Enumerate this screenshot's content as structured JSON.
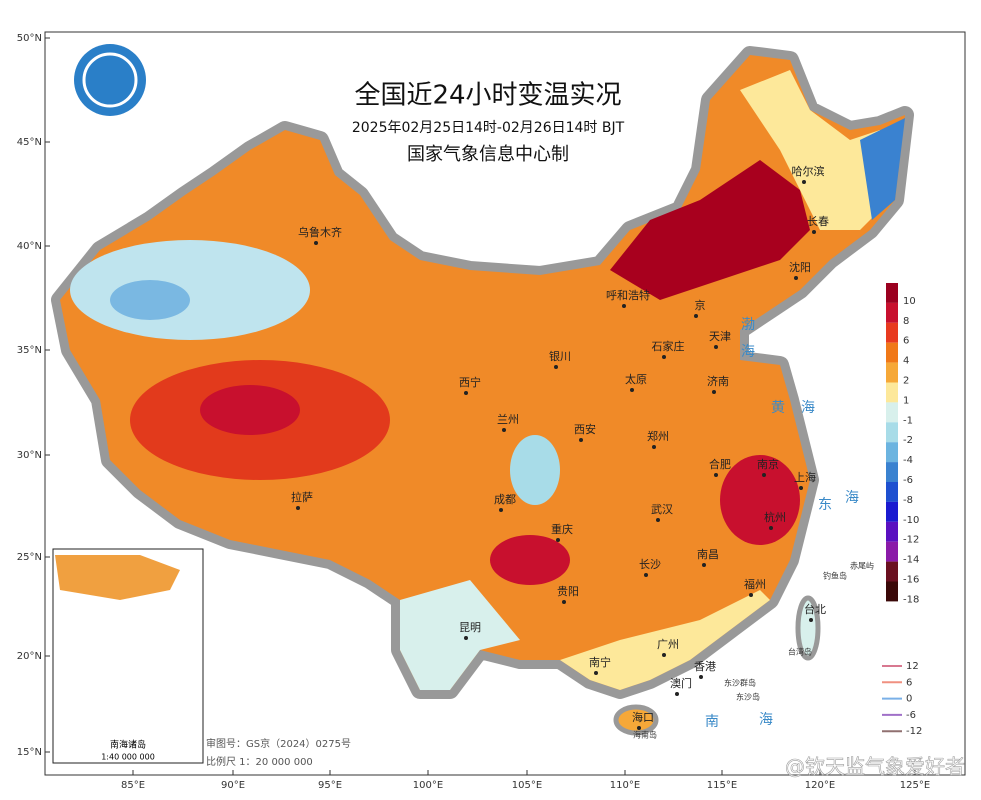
{
  "title": "全国近24小时变温实况",
  "subtitle": "2025年02月25日14时-02月26日14时 BJT",
  "producer": "国家气象信息中心制",
  "lat_labels": [
    "50°N",
    "45°N",
    "40°N",
    "35°N",
    "30°N",
    "25°N",
    "20°N",
    "15°N"
  ],
  "lon_labels": [
    "85°E",
    "90°E",
    "95°E",
    "100°E",
    "105°E",
    "110°E",
    "115°E",
    "120°E",
    "125°E"
  ],
  "cities": [
    "乌鲁木齐",
    "呼和浩特",
    "哈尔滨",
    "长春",
    "沈阳",
    "京",
    "天津",
    "石家庄",
    "银川",
    "太原",
    "济南",
    "西宁",
    "兰州",
    "西安",
    "郑州",
    "合肥",
    "南京",
    "上海",
    "拉萨",
    "成都",
    "武汉",
    "杭州",
    "重庆",
    "南昌",
    "长沙",
    "贵阳",
    "福州",
    "台北",
    "昆明",
    "广州",
    "南宁",
    "香港",
    "澳门",
    "海口"
  ],
  "places": [
    "钓鱼岛",
    "赤尾屿",
    "台湾岛",
    "东沙群岛",
    "东沙岛",
    "海南岛"
  ],
  "seas": [
    "渤",
    "海",
    "黄",
    "海",
    "东",
    "海",
    "南",
    "海"
  ],
  "colorbar": [
    {
      "value": 10,
      "color": "#9b0020"
    },
    {
      "value": 8,
      "color": "#c8102e"
    },
    {
      "value": 6,
      "color": "#e83a1f"
    },
    {
      "value": 4,
      "color": "#f07818"
    },
    {
      "value": 2,
      "color": "#f6a838"
    },
    {
      "value": 1,
      "color": "#fde89a"
    },
    {
      "value": -1,
      "color": "#d8f0ec"
    },
    {
      "value": -2,
      "color": "#a8dce8"
    },
    {
      "value": -4,
      "color": "#6cb4e0"
    },
    {
      "value": -6,
      "color": "#3a82d0"
    },
    {
      "value": -8,
      "color": "#1e50d0"
    },
    {
      "value": -10,
      "color": "#1a1ad0"
    },
    {
      "value": -12,
      "color": "#5a10c0"
    },
    {
      "value": -14,
      "color": "#8a1aa8"
    },
    {
      "value": -16,
      "color": "#6a1020"
    },
    {
      "value": -18,
      "color": "#3a0808"
    }
  ],
  "contour_legend": [
    {
      "value": 12,
      "color": "#d87890"
    },
    {
      "value": 6,
      "color": "#f09080"
    },
    {
      "value": 0,
      "color": "#7ab0e8"
    },
    {
      "value": -6,
      "color": "#a070c8"
    },
    {
      "value": -12,
      "color": "#907070"
    }
  ],
  "inset": {
    "title": "南海诸岛",
    "scale": "1:40 000 000"
  },
  "notes": [
    "审图号：GS京（2024）0275号",
    "比例尺 1：20 000 000"
  ],
  "watermark": "@钦天监气象爱好者"
}
